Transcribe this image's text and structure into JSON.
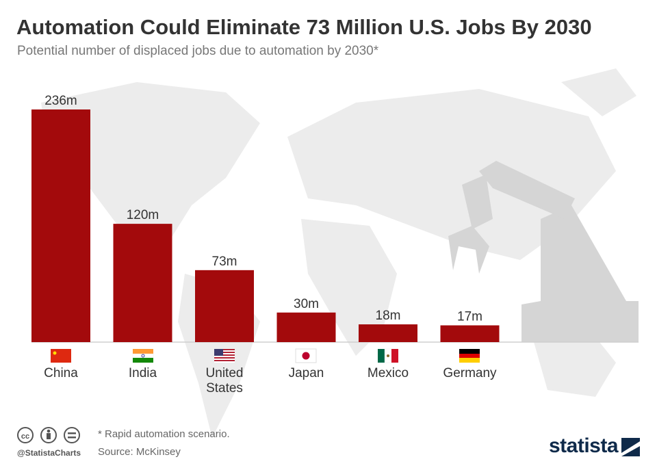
{
  "chart_data": {
    "type": "bar",
    "title": "Automation Could Eliminate 73 Million U.S. Jobs By 2030",
    "subtitle": "Potential number of displaced jobs due to automation by 2030*",
    "categories": [
      "China",
      "India",
      "United States",
      "Japan",
      "Mexico",
      "Germany"
    ],
    "values": [
      236,
      120,
      73,
      30,
      18,
      17
    ],
    "value_labels": [
      "236m",
      "120m",
      "73m",
      "30m",
      "18m",
      "17m"
    ],
    "color": "#a30a0c",
    "footnote": "* Rapid automation scenario.",
    "source": "Source: McKinsey",
    "credit": "@StatistaCharts",
    "brand": "statista"
  }
}
